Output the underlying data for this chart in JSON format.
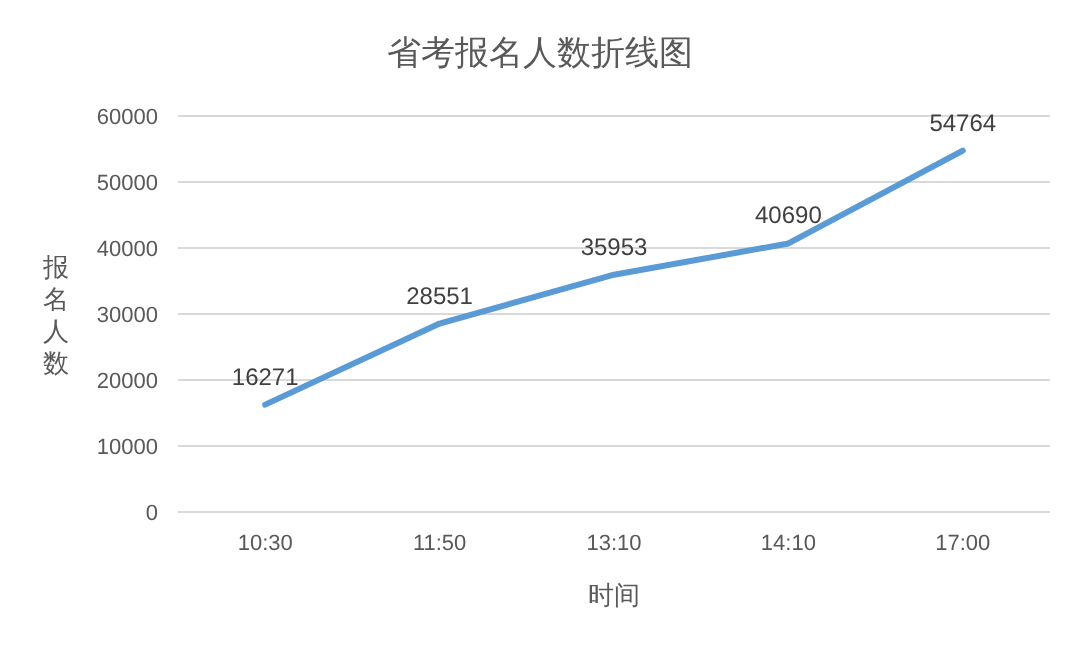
{
  "chart_data": {
    "type": "line",
    "title": "省考报名人数折线图",
    "xlabel": "时间",
    "ylabel": "报名人数",
    "categories": [
      "10:30",
      "11:50",
      "13:10",
      "14:10",
      "17:00"
    ],
    "series": [
      {
        "color": "#5b9bd5",
        "values": [
          16271,
          28551,
          35953,
          40690,
          54764
        ]
      }
    ],
    "ylim": [
      0,
      60000
    ],
    "yticks": [
      0,
      10000,
      20000,
      30000,
      40000,
      50000,
      60000
    ],
    "grid": "y",
    "data_labels": true
  }
}
